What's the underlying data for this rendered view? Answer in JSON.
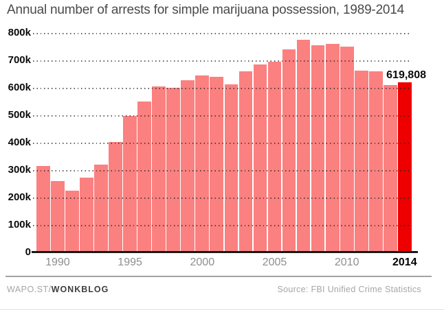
{
  "title": "Annual number of arrests for simple marijuana possession, 1989-2014",
  "chart_data": {
    "type": "bar",
    "title": "Annual number of arrests for simple marijuana possession, 1989-2014",
    "x": [
      1989,
      1990,
      1991,
      1992,
      1993,
      1994,
      1995,
      1996,
      1997,
      1998,
      1999,
      2000,
      2001,
      2002,
      2003,
      2004,
      2005,
      2006,
      2007,
      2008,
      2009,
      2010,
      2011,
      2012,
      2013,
      2014
    ],
    "values": [
      316000,
      260000,
      226000,
      273000,
      319000,
      402000,
      498000,
      550000,
      606000,
      599000,
      628000,
      646000,
      640000,
      613000,
      661000,
      684000,
      696000,
      740000,
      776000,
      754000,
      759000,
      749000,
      663000,
      659000,
      609000,
      619808
    ],
    "ylim": [
      0,
      800000
    ],
    "y_ticks": [
      "800k",
      "700k",
      "600k",
      "500k",
      "400k",
      "300k",
      "200k",
      "100k",
      "0"
    ],
    "x_ticks": [
      "1990",
      "1995",
      "2000",
      "2005",
      "2010",
      "2014"
    ],
    "grid": "horizontal-dotted",
    "legend": "none",
    "highlight_x": 2014,
    "annotation": {
      "x": 2014,
      "label": "619,808"
    },
    "colors": {
      "bar": "#fb8080",
      "highlight_bar": "#ee0000",
      "grid_dots": "#222222",
      "axis_line": "#191919"
    }
  },
  "footer": {
    "brand_prefix": "WAPO.ST/",
    "brand_bold": "WONKBLOG",
    "source": "Source: FBI Unified Crime Statistics"
  }
}
